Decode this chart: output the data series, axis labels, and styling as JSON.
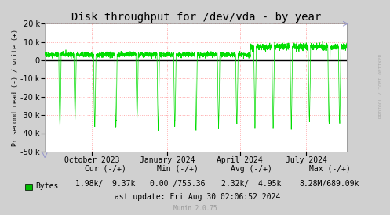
{
  "title": "Disk throughput for /dev/vda - by year",
  "ylabel": "Pr second read (-) / write (+)",
  "background_color": "#d0d0d0",
  "plot_bg_color": "#ffffff",
  "grid_color": "#ffaaaa",
  "line_color": "#00dd00",
  "legend_label": "Bytes",
  "legend_color": "#00bb00",
  "cur_neg": "1.98k",
  "cur_pos": " 9.37k",
  "min_neg": "0.00",
  "min_pos": "/755.36",
  "avg_neg": "2.32k/",
  "avg_pos": " 4.95k",
  "max_neg": "8.28M/689.09k",
  "last_update": "Last update: Fri Aug 30 02:06:52 2024",
  "munin_version": "Munin 2.0.75",
  "ylim": [
    -50000,
    20000
  ],
  "yticks": [
    -50000,
    -40000,
    -30000,
    -20000,
    -10000,
    0,
    10000,
    20000
  ],
  "xtick_labels": [
    "October 2023",
    "January 2024",
    "April 2024",
    "July 2024"
  ],
  "xtick_positions": [
    0.155,
    0.405,
    0.645,
    0.865
  ],
  "arrow_color": "#9999cc",
  "right_label": "RRDTOOL / TOBI OETIKER",
  "title_fontsize": 10,
  "tick_fontsize": 7,
  "stats_fontsize": 7
}
